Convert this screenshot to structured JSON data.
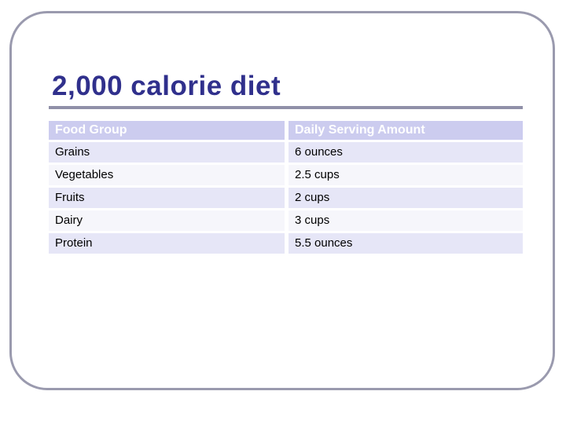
{
  "slide": {
    "title": "2,000 calorie diet"
  },
  "table": {
    "headers": [
      "Food Group",
      "Daily Serving Amount"
    ],
    "rows": [
      {
        "food_group": "Grains",
        "serving": "6 ounces"
      },
      {
        "food_group": "Vegetables",
        "serving": "2.5 cups"
      },
      {
        "food_group": "Fruits",
        "serving": "2 cups"
      },
      {
        "food_group": "Dairy",
        "serving": "3 cups"
      },
      {
        "food_group": "Protein",
        "serving": "5.5 ounces"
      }
    ]
  },
  "colors": {
    "title_text": "#30308C",
    "title_underline": "#9090A8",
    "slide_border": "#9A9AAE",
    "header_bg": "#CCCCEF",
    "header_text": "#FFFFFF",
    "row_stripe_a": "#E6E6F7",
    "row_stripe_b": "#F6F6FB",
    "cell_text": "#000000",
    "background": "#FFFFFF"
  }
}
